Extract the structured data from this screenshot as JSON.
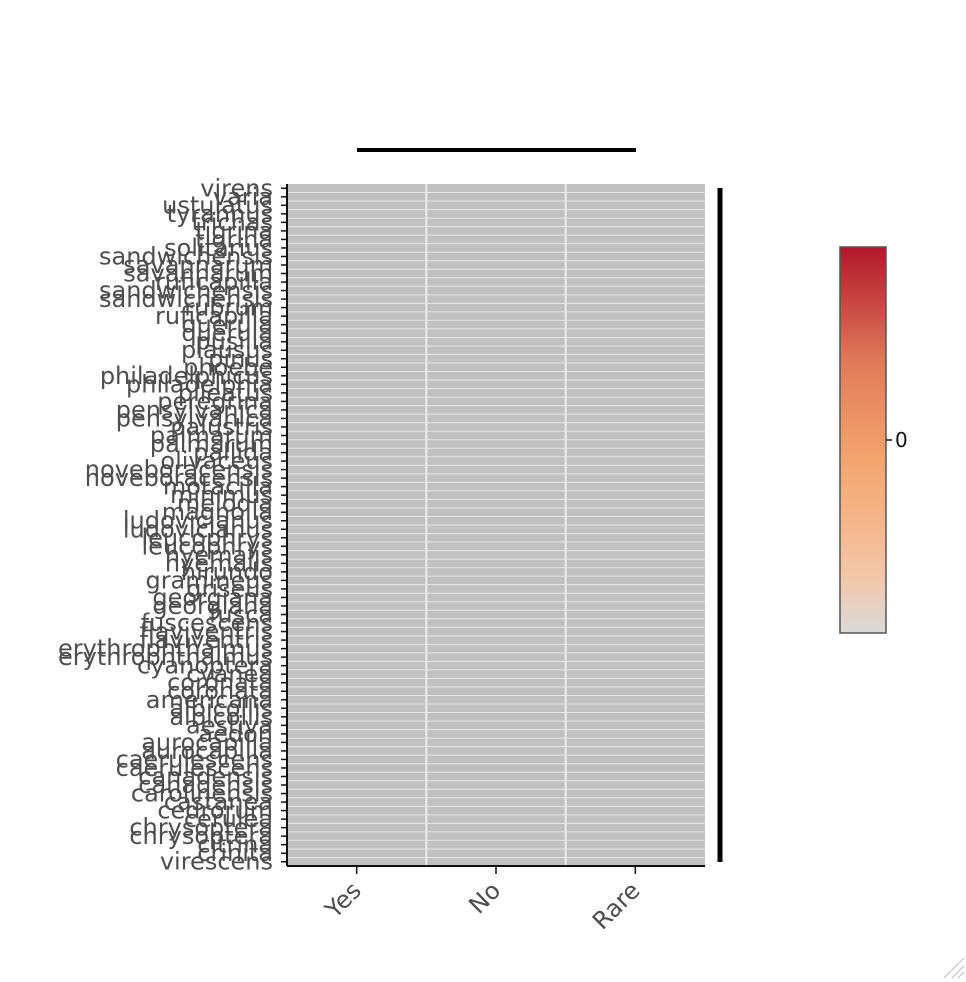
{
  "chart_data": {
    "type": "heatmap",
    "title": "",
    "xlabel": "",
    "ylabel": "",
    "columns": [
      "Yes",
      "No",
      "Rare"
    ],
    "rows": [
      "virens",
      "varia",
      "ustulatus",
      "tyrannus",
      "trichas",
      "tigrina",
      "tigrina",
      "solitarius",
      "sandwichensis",
      "savannarum",
      "savannarum",
      "ruficapilla",
      "sandwichensis",
      "sandwichensis",
      "rubrum",
      "ruficapilla",
      "querula",
      "querula",
      "pusilla",
      "plausus",
      "pinus",
      "phoebe",
      "philadelphicus",
      "philadelphia",
      "pileatus",
      "peregrina",
      "pensylvanica",
      "pensylvanica",
      "palustris",
      "palmarum",
      "palmarum",
      "pallida",
      "olivaceus",
      "noveboracensis",
      "noveboracensis",
      "motacilla",
      "minimus",
      "melodia",
      "magnolia",
      "ludovicianus",
      "ludovicianus",
      "leucophrys",
      "leucophrys",
      "hyemalis",
      "hyemalis",
      "hirundo",
      "gramineus",
      "griseus",
      "georgiana",
      "georgiana",
      "fusca",
      "fuscescens",
      "flaviventris",
      "flaviventris",
      "erythrophthalmus",
      "erythrophthalmus",
      "cyanoptera",
      "cyanea",
      "coronata",
      "coronata",
      "americana",
      "albicollis",
      "albicollis",
      "aestiva",
      "aedon",
      "aurocapilla",
      "aurocapilla",
      "caerulescens",
      "caerulescens",
      "canadensis",
      "canadensis",
      "carolinensis",
      "castanea",
      "cedrorum",
      "cerulea",
      "chrysoptera",
      "chrysoptera",
      "citrina",
      "crinita",
      "virescens"
    ],
    "values_note_free": true,
    "values": [],
    "cell_value": 0,
    "colorbar": {
      "ticks": [
        "0"
      ],
      "colors": [
        "#d9d9d9",
        "#f4a46d",
        "#d6604d",
        "#b2182b"
      ]
    },
    "cell_color": "#c0c0c0",
    "legend": "right"
  }
}
